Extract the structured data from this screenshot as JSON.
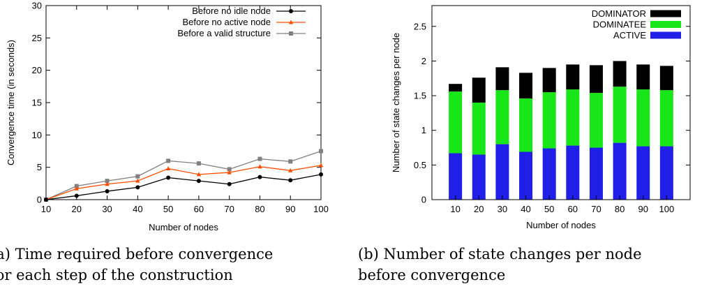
{
  "chart_data": [
    {
      "type": "line",
      "xlabel": "Number of nodes",
      "ylabel": "Convergence time (in seconds)",
      "x": [
        10,
        20,
        30,
        40,
        50,
        60,
        70,
        80,
        90,
        100
      ],
      "xlim": [
        10,
        100
      ],
      "ylim": [
        0,
        30
      ],
      "xticks": [
        "10",
        "20",
        "30",
        "40",
        "50",
        "60",
        "70",
        "80",
        "90",
        "100"
      ],
      "yticks": [
        "0",
        "5",
        "10",
        "15",
        "20",
        "25",
        "30"
      ],
      "legend_position": "top-right",
      "series": [
        {
          "name": "Before no idle node",
          "color": "#000000",
          "marker": "circle",
          "values": [
            0,
            0.6,
            1.3,
            1.9,
            3.4,
            2.9,
            2.4,
            3.5,
            3.0,
            3.9
          ]
        },
        {
          "name": "Before no active node",
          "color": "#ff4d00",
          "marker": "triangle",
          "values": [
            0,
            1.7,
            2.4,
            2.9,
            4.8,
            3.9,
            4.2,
            5.1,
            4.5,
            5.3
          ]
        },
        {
          "name": "Before a valid structure",
          "color": "#808080",
          "marker": "square",
          "values": [
            0,
            2.1,
            2.9,
            3.6,
            6.0,
            5.6,
            4.7,
            6.3,
            5.9,
            7.5
          ]
        }
      ]
    },
    {
      "type": "bar",
      "stacked": true,
      "xlabel": "Number of nodes",
      "ylabel": "Number of state changes per node",
      "categories": [
        "10",
        "20",
        "30",
        "40",
        "50",
        "60",
        "70",
        "80",
        "90",
        "100"
      ],
      "ylim": [
        0,
        2.8
      ],
      "yticks": [
        "0",
        "0.5",
        "1",
        "1.5",
        "2",
        "2.5"
      ],
      "legend_position": "top-right",
      "legend_order": [
        "DOMINATOR",
        "DOMINATEE",
        "ACTIVE"
      ],
      "series": [
        {
          "name": "ACTIVE",
          "color": "#1f1fe8",
          "values": [
            0.67,
            0.65,
            0.8,
            0.69,
            0.74,
            0.78,
            0.75,
            0.82,
            0.77,
            0.77
          ]
        },
        {
          "name": "DOMINATEE",
          "color": "#19e619",
          "values": [
            0.89,
            0.75,
            0.78,
            0.77,
            0.81,
            0.81,
            0.79,
            0.81,
            0.82,
            0.81
          ]
        },
        {
          "name": "DOMINATOR",
          "color": "#000000",
          "values": [
            0.11,
            0.36,
            0.33,
            0.37,
            0.35,
            0.36,
            0.4,
            0.37,
            0.36,
            0.35
          ]
        }
      ]
    }
  ],
  "captions": {
    "a_line1": "(a) Time required before convergence",
    "a_line2": "for each step of the construction",
    "b_line1": "(b) Number of state changes per node",
    "b_line2": "before convergence"
  }
}
